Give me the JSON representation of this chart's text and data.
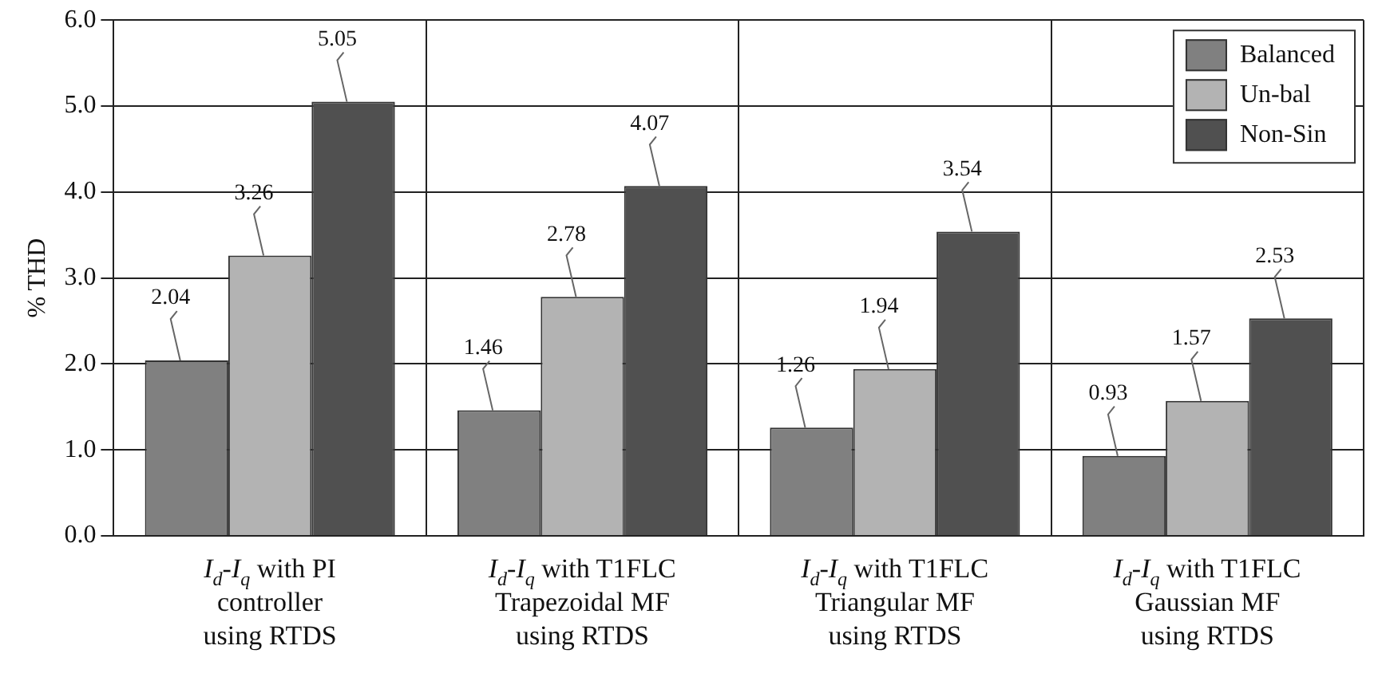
{
  "chart_data": {
    "type": "bar",
    "ylabel": "% THD",
    "categories": [
      "I$_{d}$-I$_{q}$ with PI\ncontroller\nusing RTDS",
      "I$_{d}$-I$_{q}$ with T1FLC\nTrapezoidal MF\nusing RTDS",
      "I$_{d}$-I$_{q}$ with T1FLC\nTriangular MF\nusing RTDS",
      "I$_{d}$-I$_{q}$ with T1FLC\nGaussian MF\nusing RTDS"
    ],
    "series": [
      {
        "name": "Balanced",
        "color": "#808080",
        "values": [
          2.04,
          1.46,
          1.26,
          0.93
        ]
      },
      {
        "name": "Un-bal",
        "color": "#b3b3b3",
        "values": [
          3.26,
          2.78,
          1.94,
          1.57
        ]
      },
      {
        "name": "Non-Sin",
        "color": "#505050",
        "values": [
          5.05,
          4.07,
          3.54,
          2.53
        ]
      }
    ],
    "ylim": [
      0,
      6
    ],
    "yticks": [
      {
        "value": 0,
        "label": "0.0"
      },
      {
        "value": 1,
        "label": "1.0"
      },
      {
        "value": 2,
        "label": "2.0"
      },
      {
        "value": 3,
        "label": "3.0"
      },
      {
        "value": 4,
        "label": "4.0"
      },
      {
        "value": 5,
        "label": "5.0"
      },
      {
        "value": 6,
        "label": "6.0"
      }
    ],
    "grid": true,
    "legend": "top right",
    "data_labels": true
  }
}
